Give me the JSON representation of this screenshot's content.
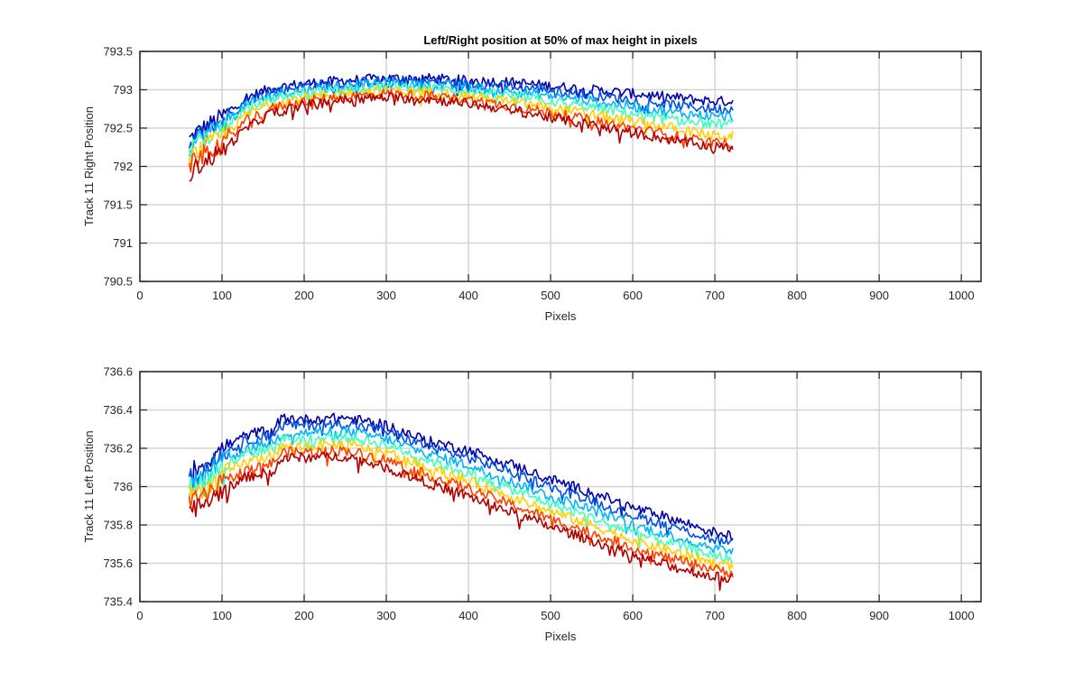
{
  "chart_data": [
    {
      "type": "line",
      "title": "Left/Right position at 50% of max height in pixels",
      "xlabel": "Pixels",
      "ylabel": "Track 11 Right Position",
      "xlim": [
        0,
        1024
      ],
      "ylim": [
        790.5,
        793.5
      ],
      "xticks": [
        0,
        100,
        200,
        300,
        400,
        500,
        600,
        700,
        800,
        900,
        1000
      ],
      "xtick_labels": [
        "0",
        "100",
        "200",
        "300",
        "400",
        "500",
        "600",
        "700",
        "800",
        "900",
        "1000"
      ],
      "yticks": [
        790.5,
        791,
        791.5,
        792,
        792.5,
        793,
        793.5
      ],
      "ytick_labels": [
        "790.5",
        "791",
        "791.5",
        "792",
        "792.5",
        "793",
        "793.5"
      ],
      "grid": true,
      "x_range_of_data": [
        60,
        722
      ],
      "series": [
        {
          "color": "#0000aa",
          "x": [
            60,
            70,
            100,
            130,
            160,
            200,
            250,
            300,
            350,
            400,
            450,
            500,
            550,
            600,
            650,
            700,
            722
          ],
          "y": [
            792.35,
            792.45,
            792.65,
            792.9,
            793.02,
            793.08,
            793.12,
            793.15,
            793.15,
            793.12,
            793.1,
            793.05,
            793.0,
            792.95,
            792.9,
            792.85,
            792.85
          ]
        },
        {
          "color": "#0050e0",
          "x": [
            60,
            70,
            100,
            130,
            160,
            200,
            250,
            300,
            350,
            400,
            450,
            500,
            550,
            600,
            650,
            700,
            722
          ],
          "y": [
            792.3,
            792.4,
            792.6,
            792.85,
            792.98,
            793.05,
            793.09,
            793.12,
            793.11,
            793.08,
            793.05,
            793.0,
            792.93,
            792.87,
            792.8,
            792.75,
            792.75
          ]
        },
        {
          "color": "#00b4ff",
          "x": [
            60,
            70,
            100,
            130,
            160,
            200,
            250,
            300,
            350,
            400,
            450,
            500,
            550,
            600,
            650,
            700,
            722
          ],
          "y": [
            792.25,
            792.35,
            792.55,
            792.8,
            792.93,
            793.0,
            793.05,
            793.08,
            793.07,
            793.03,
            792.98,
            792.92,
            792.85,
            792.78,
            792.7,
            792.65,
            792.65
          ]
        },
        {
          "color": "#40ffbf",
          "x": [
            60,
            70,
            100,
            130,
            160,
            200,
            250,
            300,
            350,
            400,
            450,
            500,
            550,
            600,
            650,
            700,
            722
          ],
          "y": [
            792.2,
            792.3,
            792.5,
            792.75,
            792.88,
            792.96,
            793.01,
            793.04,
            793.03,
            792.98,
            792.92,
            792.85,
            792.77,
            792.69,
            792.6,
            792.55,
            792.55
          ]
        },
        {
          "color": "#ffd000",
          "x": [
            60,
            70,
            100,
            130,
            160,
            200,
            250,
            300,
            350,
            400,
            450,
            500,
            550,
            600,
            650,
            700,
            722
          ],
          "y": [
            792.1,
            792.2,
            792.4,
            792.68,
            792.82,
            792.9,
            792.96,
            792.99,
            792.97,
            792.92,
            792.85,
            792.77,
            792.68,
            792.59,
            792.5,
            792.4,
            792.4
          ]
        },
        {
          "color": "#ff4000",
          "x": [
            60,
            70,
            100,
            130,
            160,
            200,
            250,
            300,
            350,
            400,
            450,
            500,
            550,
            600,
            650,
            700,
            722
          ],
          "y": [
            792.0,
            792.1,
            792.3,
            792.6,
            792.76,
            792.85,
            792.91,
            792.95,
            792.92,
            792.87,
            792.79,
            792.7,
            792.6,
            792.5,
            792.4,
            792.3,
            792.3
          ]
        },
        {
          "color": "#b00000",
          "x": [
            60,
            70,
            100,
            130,
            160,
            200,
            250,
            300,
            350,
            400,
            450,
            500,
            550,
            600,
            650,
            700,
            722
          ],
          "y": [
            791.9,
            792.0,
            792.2,
            792.5,
            792.7,
            792.8,
            792.87,
            792.9,
            792.88,
            792.82,
            792.74,
            792.64,
            792.54,
            792.44,
            792.34,
            792.25,
            792.25
          ]
        }
      ]
    },
    {
      "type": "line",
      "title": "",
      "xlabel": "Pixels",
      "ylabel": "Track 11 Left Position",
      "xlim": [
        0,
        1024
      ],
      "ylim": [
        735.4,
        736.6
      ],
      "xticks": [
        0,
        100,
        200,
        300,
        400,
        500,
        600,
        700,
        800,
        900,
        1000
      ],
      "xtick_labels": [
        "0",
        "100",
        "200",
        "300",
        "400",
        "500",
        "600",
        "700",
        "800",
        "900",
        "1000"
      ],
      "yticks": [
        735.4,
        735.6,
        735.8,
        736,
        736.2,
        736.4,
        736.6
      ],
      "ytick_labels": [
        "735.4",
        "735.6",
        "735.8",
        "736",
        "736.2",
        "736.4",
        "736.6"
      ],
      "grid": true,
      "x_range_of_data": [
        60,
        722
      ],
      "series": [
        {
          "color": "#0000aa",
          "x": [
            60,
            80,
            100,
            130,
            160,
            175,
            200,
            250,
            300,
            350,
            400,
            450,
            500,
            550,
            600,
            650,
            700,
            722
          ],
          "y": [
            736.08,
            736.12,
            736.2,
            736.27,
            736.3,
            736.36,
            736.35,
            736.36,
            736.32,
            736.24,
            736.19,
            736.12,
            736.04,
            735.97,
            735.89,
            735.83,
            735.76,
            735.74
          ]
        },
        {
          "color": "#0050e0",
          "x": [
            60,
            80,
            100,
            130,
            160,
            175,
            200,
            250,
            300,
            350,
            400,
            450,
            500,
            550,
            600,
            650,
            700,
            722
          ],
          "y": [
            736.05,
            736.09,
            736.17,
            736.24,
            736.27,
            736.32,
            736.32,
            736.33,
            736.29,
            736.21,
            736.15,
            736.08,
            736.0,
            735.93,
            735.85,
            735.79,
            735.72,
            735.7
          ]
        },
        {
          "color": "#00b4ff",
          "x": [
            60,
            80,
            100,
            130,
            160,
            175,
            200,
            250,
            300,
            350,
            400,
            450,
            500,
            550,
            600,
            650,
            700,
            722
          ],
          "y": [
            736.02,
            736.06,
            736.13,
            736.2,
            736.23,
            736.28,
            736.28,
            736.29,
            736.25,
            736.17,
            736.11,
            736.03,
            735.95,
            735.88,
            735.8,
            735.74,
            735.68,
            735.66
          ]
        },
        {
          "color": "#40ffbf",
          "x": [
            60,
            80,
            100,
            130,
            160,
            175,
            200,
            250,
            300,
            350,
            400,
            450,
            500,
            550,
            600,
            650,
            700,
            722
          ],
          "y": [
            736.0,
            736.03,
            736.1,
            736.17,
            736.2,
            736.25,
            736.25,
            736.26,
            736.22,
            736.14,
            736.07,
            735.99,
            735.91,
            735.84,
            735.76,
            735.7,
            735.64,
            735.62
          ]
        },
        {
          "color": "#ffd000",
          "x": [
            60,
            80,
            100,
            130,
            160,
            175,
            200,
            250,
            300,
            350,
            400,
            450,
            500,
            550,
            600,
            650,
            700,
            722
          ],
          "y": [
            735.96,
            735.99,
            736.06,
            736.13,
            736.16,
            736.21,
            736.21,
            736.22,
            736.18,
            736.1,
            736.03,
            735.95,
            735.87,
            735.8,
            735.72,
            735.66,
            735.6,
            735.58
          ]
        },
        {
          "color": "#ff4000",
          "x": [
            60,
            80,
            100,
            130,
            160,
            175,
            200,
            250,
            300,
            350,
            400,
            450,
            500,
            550,
            600,
            650,
            700,
            722
          ],
          "y": [
            735.92,
            735.95,
            736.02,
            736.09,
            736.12,
            736.18,
            736.18,
            736.19,
            736.14,
            736.06,
            735.99,
            735.91,
            735.83,
            735.76,
            735.68,
            735.62,
            735.57,
            735.55
          ]
        },
        {
          "color": "#b00000",
          "x": [
            60,
            80,
            100,
            130,
            160,
            175,
            200,
            250,
            300,
            350,
            400,
            450,
            500,
            550,
            600,
            650,
            700,
            722
          ],
          "y": [
            735.88,
            735.91,
            735.98,
            736.05,
            736.08,
            736.15,
            736.15,
            736.16,
            736.1,
            736.02,
            735.95,
            735.87,
            735.79,
            735.72,
            735.64,
            735.58,
            735.53,
            735.52
          ]
        }
      ]
    }
  ]
}
